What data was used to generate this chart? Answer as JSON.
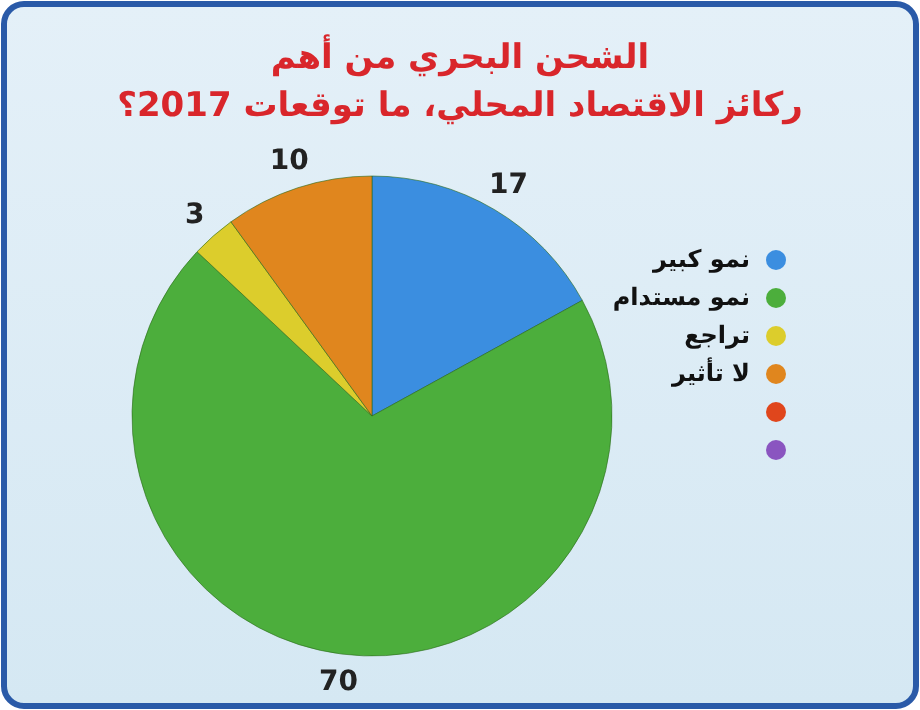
{
  "chart_data": {
    "type": "pie",
    "title": "الشحن البحري من أهم\nركائز الاقتصاد المحلي، ما توقعات 2017؟",
    "categories": [
      "نمو كبير",
      "نمو مستدام",
      "تراجع",
      "لا تأثير",
      null,
      null
    ],
    "values": [
      17,
      70,
      3,
      10,
      0,
      0
    ],
    "value_labels": [
      "17",
      "70",
      "3",
      "10",
      null,
      null
    ],
    "colors": [
      "#3b8ee0",
      "#4cae3c",
      "#dccd2c",
      "#e0861e",
      "#e0461c",
      "#8a55c0"
    ],
    "legend": "right"
  }
}
